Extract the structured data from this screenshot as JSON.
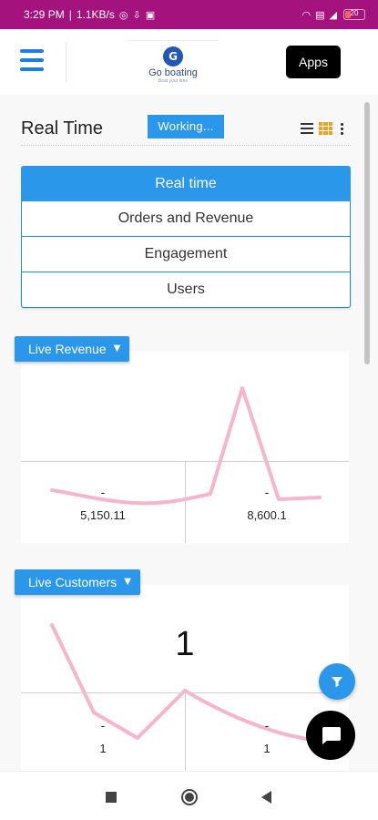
{
  "status_bar": {
    "time": "3:29 PM",
    "network_speed": "1.1KB/s",
    "icons": [
      "whatsapp-icon",
      "download-icon",
      "gallery-icon",
      "wifi-icon",
      "sim-icon",
      "signal-icon",
      "battery-icon"
    ],
    "battery_level": 0.25,
    "battery_text": "20"
  },
  "header": {
    "menu_icon": "hamburger-menu-icon",
    "logo_mark": "G",
    "logo_name": "Go boating",
    "logo_tagline": "Boat your time",
    "apps_label": "Apps"
  },
  "page": {
    "title": "Real Time",
    "working_label": "Working...",
    "view_icons": [
      "list-view-icon",
      "grid-view-icon",
      "more-vertical-icon"
    ]
  },
  "tabs": [
    {
      "label": "Real time",
      "active": true
    },
    {
      "label": "Orders and Revenue",
      "active": false
    },
    {
      "label": "Engagement",
      "active": false
    },
    {
      "label": "Users",
      "active": false
    }
  ],
  "cards": {
    "revenue": {
      "label": "Live Revenue",
      "left_dash": "-",
      "left_value": "5,150.11",
      "right_dash": "-",
      "right_value": "8,600.1"
    },
    "customers": {
      "label": "Live Customers",
      "big_number": "1",
      "left_dash": "-",
      "left_value": "1",
      "right_dash": "-",
      "right_value": "1"
    }
  },
  "fabs": {
    "filter_icon": "filter-icon",
    "chat_icon": "chat-bubble-icon"
  },
  "nav_bar": {
    "icons": [
      "recent-apps-icon",
      "home-icon",
      "back-icon"
    ]
  },
  "colors": {
    "status_bar": "#a4127d",
    "primary": "#2a97ea",
    "sparkline": "#f4a8c4"
  }
}
